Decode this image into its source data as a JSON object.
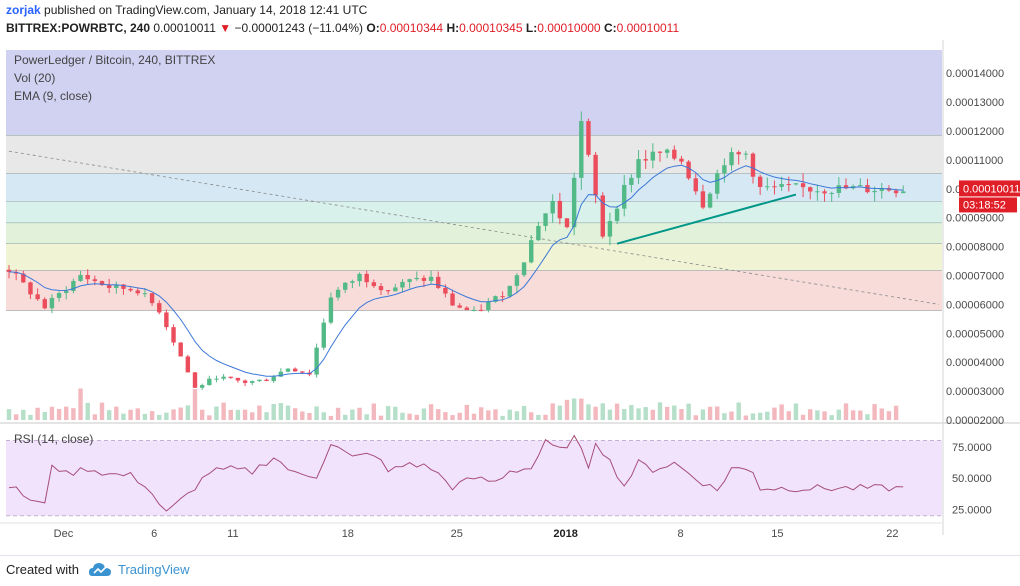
{
  "header": {
    "user": "zorjak",
    "published": "published on TradingView.com, January 14, 2018 12:41 UTC",
    "symbol": "BITTREX:POWRBTC, 240",
    "last": "0.00010011",
    "change": "−0.00001243 (−11.04%)",
    "o_label": "O:",
    "o_value": "0.00010344",
    "h_label": "H:",
    "h_value": "0.00010345",
    "l_label": "L:",
    "l_value": "0.00010000",
    "c_label": "C:",
    "c_value": "0.00010011"
  },
  "legend": {
    "line1": "PowerLedger / Bitcoin, 240, BITTREX",
    "line2": "Vol (20)",
    "line3": "EMA (9, close)"
  },
  "price_badges": {
    "last_price": "0.00010011",
    "countdown": "03:18:52"
  },
  "rsi_title": "RSI (14, close)",
  "footer": {
    "created": "Created with",
    "brand": "TradingView"
  },
  "colors": {
    "up": "#53b987",
    "down": "#eb4d5c",
    "ema": "#3c78d8",
    "rsi": "#a64d79",
    "trend": "#009688",
    "badge": "#e01e28"
  },
  "chart_data": [
    {
      "type": "candlestick",
      "title": "PowerLedger / Bitcoin, 240, BITTREX",
      "x_ticks": [
        "Dec",
        "6",
        "11",
        "18",
        "25",
        "2018",
        "8",
        "15",
        "22"
      ],
      "y_ticks": [
        "0.00014000",
        "0.00013000",
        "0.00012000",
        "0.00011000",
        "0.00010000",
        "0.00009000",
        "0.00008000",
        "0.00007000",
        "0.00006000",
        "0.00005000",
        "0.00004000",
        "0.00003000",
        "0.00002000"
      ],
      "ylim": [
        2e-05,
        0.000148
      ],
      "last_price": 0.00010011,
      "fib_levels": [
        0.0001185,
        0.0001052,
        9.55e-05,
        8.82e-05,
        8.1e-05,
        7.18e-05,
        5.78e-05
      ],
      "fib_colors": [
        "#c9c9f0",
        "#e6e6e6",
        "#d2e6f2",
        "#d4efe8",
        "#dff1d6",
        "#eef3cf",
        "#f6d8d6"
      ],
      "price_path": [
        [
          0,
          7.2e-05
        ],
        [
          5,
          5.9e-05
        ],
        [
          10,
          7e-05
        ],
        [
          14,
          6.6e-05
        ],
        [
          18,
          6.5e-05
        ],
        [
          21,
          5.8e-05
        ],
        [
          24,
          4.2e-05
        ],
        [
          26,
          3.1e-05
        ],
        [
          29,
          3.5e-05
        ],
        [
          33,
          3.3e-05
        ],
        [
          36,
          3.4e-05
        ],
        [
          39,
          3.8e-05
        ],
        [
          42,
          3.6e-05
        ],
        [
          45,
          6.3e-05
        ],
        [
          49,
          7e-05
        ],
        [
          53,
          6.5e-05
        ],
        [
          56,
          6.8e-05
        ],
        [
          59,
          6.9e-05
        ],
        [
          62,
          6e-05
        ],
        [
          65,
          5.7e-05
        ],
        [
          68,
          6.2e-05
        ],
        [
          70,
          6.6e-05
        ],
        [
          72,
          7.6e-05
        ],
        [
          74,
          8.8e-05
        ],
        [
          76,
          9.5e-05
        ],
        [
          78,
          8.6e-05
        ],
        [
          80,
          0.000123
        ],
        [
          81,
          0.00011
        ],
        [
          83,
          8.4e-05
        ],
        [
          85,
          9.5e-05
        ],
        [
          88,
          0.00011
        ],
        [
          91,
          0.000112
        ],
        [
          94,
          0.00011
        ],
        [
          97,
          9.5e-05
        ],
        [
          100,
          0.00011
        ],
        [
          103,
          0.000112
        ],
        [
          105,
          0.0001
        ]
      ],
      "trendline": [
        [
          85,
          8.1e-05
        ],
        [
          110,
          9.8e-05
        ]
      ],
      "dashed_line": [
        [
          0,
          0.000113
        ],
        [
          130,
          6e-05
        ]
      ]
    },
    {
      "type": "line",
      "title": "RSI (14, close)",
      "y_ticks": [
        "75.0000",
        "50.0000",
        "25.0000"
      ],
      "ylim": [
        15,
        90
      ],
      "upper_band": 80,
      "lower_band": 20,
      "values": [
        [
          0,
          44
        ],
        [
          3,
          33
        ],
        [
          5,
          28
        ],
        [
          6,
          62
        ],
        [
          8,
          53
        ],
        [
          11,
          58
        ],
        [
          14,
          53
        ],
        [
          17,
          52
        ],
        [
          19,
          45
        ],
        [
          22,
          22
        ],
        [
          25,
          37
        ],
        [
          28,
          55
        ],
        [
          31,
          57
        ],
        [
          34,
          55
        ],
        [
          37,
          67
        ],
        [
          40,
          53
        ],
        [
          43,
          52
        ],
        [
          45,
          78
        ],
        [
          48,
          66
        ],
        [
          51,
          70
        ],
        [
          53,
          55
        ],
        [
          56,
          62
        ],
        [
          59,
          58
        ],
        [
          62,
          43
        ],
        [
          65,
          50
        ],
        [
          68,
          47
        ],
        [
          70,
          56
        ],
        [
          73,
          58
        ],
        [
          75,
          78
        ],
        [
          77,
          72
        ],
        [
          79,
          82
        ],
        [
          81,
          60
        ],
        [
          82,
          80
        ],
        [
          84,
          63
        ],
        [
          86,
          44
        ],
        [
          88,
          62
        ],
        [
          90,
          57
        ],
        [
          93,
          62
        ],
        [
          96,
          50
        ],
        [
          99,
          40
        ],
        [
          101,
          58
        ],
        [
          104,
          56
        ],
        [
          105,
          42
        ]
      ]
    }
  ]
}
